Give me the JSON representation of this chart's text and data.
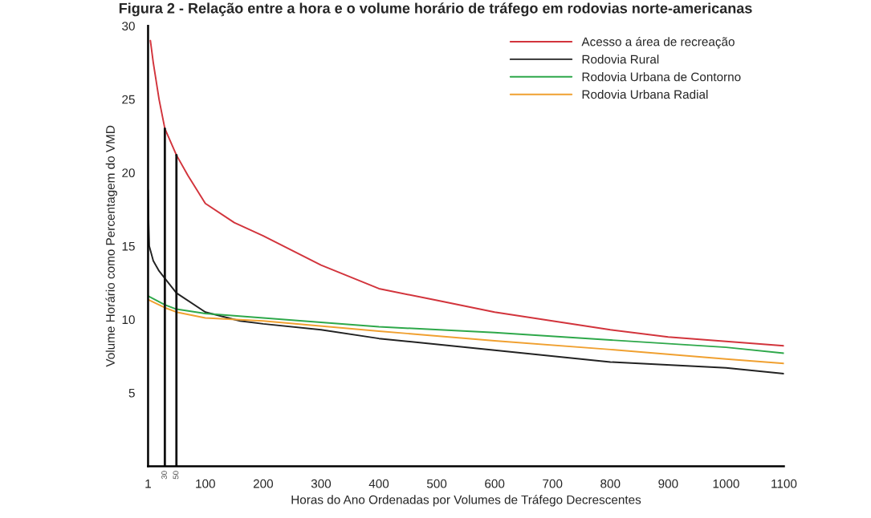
{
  "chart_data": {
    "type": "line",
    "title": "Figura 2 - Relação entre a hora e o volume horário de tráfego em rodovias norte-americanas",
    "xlabel": "Horas do Ano Ordenadas por Volumes de Tráfego Decrescentes",
    "ylabel": "Volume Horário como Percentagem do VMD",
    "xlim": [
      1,
      1100
    ],
    "ylim": [
      0,
      30
    ],
    "xticks": [
      1,
      100,
      200,
      300,
      400,
      500,
      600,
      700,
      800,
      900,
      1000,
      1100
    ],
    "yticks": [
      5,
      10,
      15,
      20,
      25,
      30
    ],
    "grid": false,
    "legend": "top right",
    "line_style": "solid",
    "series": [
      {
        "name": "Acesso a área de recreação",
        "color": "#d2343c",
        "x": [
          5,
          10,
          20,
          30,
          50,
          70,
          100,
          150,
          200,
          300,
          400,
          500,
          600,
          700,
          800,
          900,
          1000,
          1100
        ],
        "values": [
          29,
          27.5,
          25,
          23,
          21.2,
          19.8,
          17.9,
          16.6,
          15.7,
          13.7,
          12.1,
          11.3,
          10.5,
          9.9,
          9.3,
          8.8,
          8.5,
          8.2
        ]
      },
      {
        "name": "Rodovia Rural",
        "color": "#222222",
        "x": [
          1,
          2,
          3,
          10,
          20,
          30,
          50,
          100,
          130,
          160,
          200,
          300,
          400,
          600,
          800,
          1000,
          1100
        ],
        "values": [
          18.8,
          16.5,
          15.0,
          14.0,
          13.3,
          12.8,
          11.8,
          10.5,
          10.2,
          9.9,
          9.7,
          9.3,
          8.7,
          7.9,
          7.1,
          6.7,
          6.3
        ]
      },
      {
        "name": "Rodovia Urbana de Contorno",
        "color": "#2ea84a",
        "x": [
          1,
          30,
          50,
          100,
          200,
          400,
          600,
          800,
          1000,
          1100
        ],
        "values": [
          11.6,
          11.0,
          10.7,
          10.4,
          10.1,
          9.5,
          9.1,
          8.6,
          8.1,
          7.7
        ]
      },
      {
        "name": "Rodovia Urbana Radial",
        "color": "#f0a030",
        "x": [
          1,
          30,
          50,
          100,
          200,
          400,
          600,
          800,
          1000,
          1100
        ],
        "values": [
          11.35,
          10.8,
          10.5,
          10.1,
          9.9,
          9.2,
          8.55,
          7.95,
          7.3,
          7.0
        ]
      }
    ],
    "ref_lines": [
      {
        "axis": "x",
        "value": 30,
        "label": "30",
        "color": "#111111"
      },
      {
        "axis": "x",
        "value": 50,
        "label": "50",
        "color": "#111111"
      }
    ]
  }
}
